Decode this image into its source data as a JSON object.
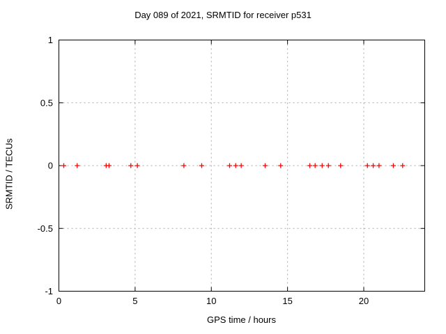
{
  "chart_data": {
    "type": "scatter",
    "title": "Day 089 of 2021, SRMTID for receiver p531",
    "xlabel": "GPS time / hours",
    "ylabel": "SRMTID / TECUs",
    "xlim": [
      0,
      24
    ],
    "ylim": [
      -1,
      1
    ],
    "xticks": {
      "values": [
        0,
        5,
        10,
        15,
        20
      ],
      "labels": [
        "0",
        "5",
        "10",
        "15",
        "20"
      ]
    },
    "yticks": {
      "values": [
        1,
        0.5,
        0,
        -0.5,
        -1
      ],
      "labels": [
        "1",
        "0.5",
        "0",
        "-0.5",
        "-1"
      ]
    },
    "grid": true,
    "legend_position": "none",
    "series": [
      {
        "name": "SRMTID",
        "marker": "plus",
        "color": "#ff0000",
        "points": [
          [
            0.32,
            0
          ],
          [
            1.2,
            0
          ],
          [
            3.1,
            0
          ],
          [
            3.29,
            0
          ],
          [
            4.72,
            0
          ],
          [
            5.15,
            0
          ],
          [
            8.2,
            0
          ],
          [
            9.37,
            0
          ],
          [
            11.2,
            0
          ],
          [
            11.6,
            0
          ],
          [
            11.96,
            0
          ],
          [
            13.53,
            0
          ],
          [
            14.55,
            0
          ],
          [
            16.46,
            0
          ],
          [
            16.81,
            0
          ],
          [
            17.27,
            0
          ],
          [
            17.68,
            0
          ],
          [
            18.48,
            0
          ],
          [
            20.24,
            0
          ],
          [
            20.62,
            0
          ],
          [
            21.0,
            0
          ],
          [
            21.94,
            0
          ],
          [
            22.55,
            0
          ]
        ]
      }
    ]
  },
  "colors": {
    "background": "#ffffff",
    "axis": "#000000",
    "grid": "#a8a8a8",
    "marker": "#ff0000",
    "text": "#000000"
  }
}
